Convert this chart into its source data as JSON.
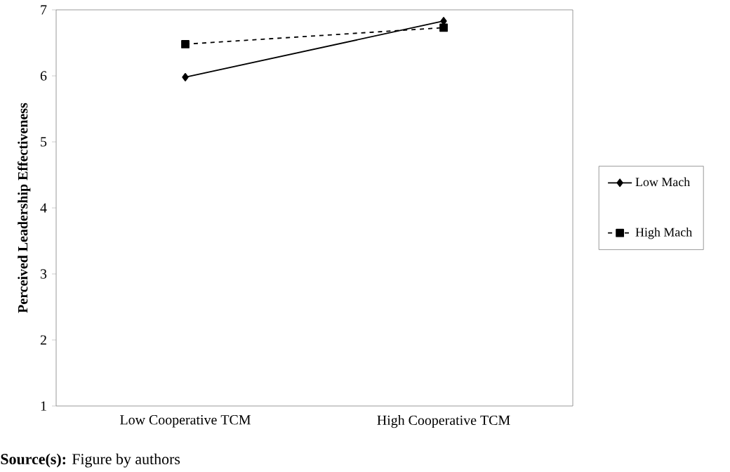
{
  "chart_data": {
    "type": "line",
    "ylabel": "Perceived Leadership Effectiveness",
    "categories": [
      "Low Cooperative TCM",
      "High Cooperative TCM"
    ],
    "series": [
      {
        "name": "Low Mach",
        "color": "#000000",
        "values": [
          5.98,
          6.83
        ],
        "marker": "diamond",
        "line_style": "solid"
      },
      {
        "name": "High Mach",
        "color": "#000000",
        "values": [
          6.48,
          6.73
        ],
        "marker": "square",
        "line_style": "dashed"
      }
    ],
    "ylim": [
      1,
      7
    ],
    "yticks": [
      1,
      2,
      3,
      4,
      5,
      6,
      7
    ],
    "grid": false,
    "legend": "right",
    "annotations": [
      "**Source(s):** Figure by authors"
    ]
  }
}
